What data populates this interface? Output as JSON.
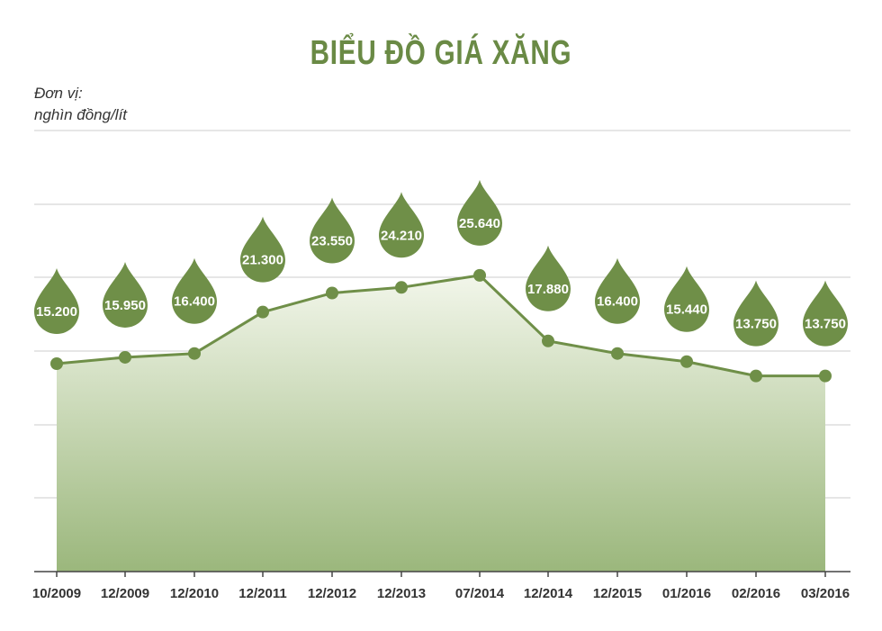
{
  "title": "BIỂU ĐỒ GIÁ XĂNG",
  "unit_line1": "Đơn vị:",
  "unit_line2": "nghìn đồng/lít",
  "colors": {
    "accent": "#6a8a45",
    "marker": "#6f8f48",
    "fill_top": "#f2f6ea",
    "fill_bottom": "#9bb77c",
    "grid": "#cccccc",
    "axis": "#444444"
  },
  "chart_data": {
    "type": "area",
    "title": "BIỂU ĐỒ GIÁ XĂNG",
    "ylabel": "Đơn vị: nghìn đồng/lít",
    "categories": [
      "10/2009",
      "12/2009",
      "12/2010",
      "12/2011",
      "12/2012",
      "12/2013",
      "07/2014",
      "12/2014",
      "12/2015",
      "01/2016",
      "02/2016",
      "03/2016"
    ],
    "values": [
      15.2,
      15.95,
      16.4,
      21.3,
      23.55,
      24.21,
      25.64,
      17.88,
      16.4,
      15.44,
      13.75,
      13.75
    ],
    "value_labels": [
      "15.200",
      "15.950",
      "16.400",
      "21.300",
      "23.550",
      "24.210",
      "25.640",
      "17.880",
      "16.400",
      "15.440",
      "13.750",
      "13.750"
    ],
    "ylim": [
      0,
      30
    ],
    "grid": true,
    "legend": "none"
  }
}
